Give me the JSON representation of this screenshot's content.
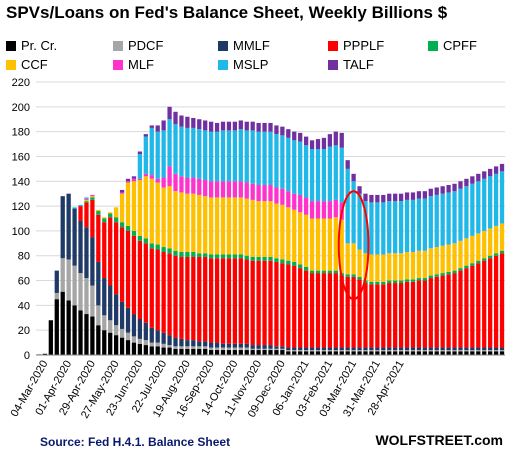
{
  "title": "SPVs/Loans  on Fed's Balance Sheet, Weekly Billions $",
  "source": "Source: Fed H.4.1. Balance Sheet",
  "brand": "WOLFSTREET.com",
  "legend": [
    {
      "label": "Pr. Cr.",
      "color": "#000000"
    },
    {
      "label": "PDCF",
      "color": "#a6a6a6"
    },
    {
      "label": "MMLF",
      "color": "#1f3a66"
    },
    {
      "label": "PPPLF",
      "color": "#ff0000"
    },
    {
      "label": "CPFF",
      "color": "#00b050"
    },
    {
      "label": "CCF",
      "color": "#ffc000"
    },
    {
      "label": "MLF",
      "color": "#ff33cc"
    },
    {
      "label": "MSLP",
      "color": "#20b8e8"
    },
    {
      "label": "TALF",
      "color": "#7030a0"
    }
  ],
  "chart_data": {
    "type": "bar",
    "stacked": true,
    "title": "SPVs/Loans  on Fed's Balance Sheet, Weekly Billions $",
    "ylim": [
      0,
      220
    ],
    "yticks": [
      0,
      20,
      40,
      60,
      80,
      100,
      120,
      140,
      160,
      180,
      200,
      220
    ],
    "grid": "horizontal",
    "legend_position": "top",
    "x_tick_labels": [
      "04-Mar-2020",
      "01-Apr-2020",
      "29-Apr-2020",
      "27-May-2020",
      "23-Jun-2020",
      "22-Jul-2020",
      "19-Aug-2020",
      "16-Sep-2020",
      "14-Oct-2020",
      "11-Nov-2020",
      "09-Dec-2020",
      "06-Jan-2021",
      "03-Feb-2021",
      "03-Mar-2021",
      "31-Mar-2021",
      "28-Apr-2021"
    ],
    "series_names": [
      "Pr. Cr.",
      "PDCF",
      "MMLF",
      "PPPLF",
      "CPFF",
      "CCF",
      "MLF",
      "MSLP",
      "TALF"
    ],
    "series_colors": [
      "#000000",
      "#a6a6a6",
      "#1f3a66",
      "#ff0000",
      "#00b050",
      "#ffc000",
      "#ff33cc",
      "#20b8e8",
      "#7030a0"
    ],
    "weeks": [
      [
        0.5,
        0,
        0,
        0,
        0,
        0,
        0,
        0,
        0
      ],
      [
        1,
        0,
        0,
        0,
        0,
        0,
        0,
        0,
        0
      ],
      [
        28,
        0,
        0,
        0,
        0,
        0,
        0,
        0,
        0
      ],
      [
        45,
        5,
        18,
        0,
        0,
        0,
        0,
        0,
        0
      ],
      [
        51,
        27,
        50,
        0,
        0,
        0,
        0,
        0,
        0
      ],
      [
        44,
        33,
        53,
        0,
        0,
        0,
        0,
        0,
        0
      ],
      [
        40,
        32,
        46,
        0,
        0,
        0,
        0,
        1,
        0
      ],
      [
        36,
        30,
        42,
        12,
        0,
        0,
        0,
        1,
        0
      ],
      [
        33,
        29,
        41,
        20,
        1,
        1,
        1,
        1,
        0
      ],
      [
        31,
        25,
        39,
        30,
        2,
        1,
        1,
        0,
        0
      ],
      [
        24,
        16,
        35,
        38,
        3,
        1,
        0,
        0,
        0
      ],
      [
        20,
        12,
        30,
        45,
        3,
        1,
        0,
        0,
        0
      ],
      [
        18,
        10,
        28,
        55,
        3,
        1,
        0,
        0,
        0
      ],
      [
        16,
        8,
        25,
        58,
        4,
        8,
        0,
        0,
        0
      ],
      [
        14,
        7,
        22,
        60,
        4,
        23,
        1,
        0,
        2
      ],
      [
        12,
        6,
        20,
        62,
        4,
        35,
        1,
        0,
        2
      ],
      [
        10,
        5,
        18,
        63,
        4,
        40,
        2,
        0,
        2
      ],
      [
        9,
        4,
        16,
        63,
        4,
        45,
        1,
        20,
        2
      ],
      [
        8,
        4,
        14,
        64,
        4,
        50,
        2,
        30,
        2
      ],
      [
        7,
        3,
        12,
        64,
        4,
        52,
        3,
        38,
        2
      ],
      [
        7,
        3,
        10,
        65,
        4,
        50,
        3,
        38,
        5
      ],
      [
        6,
        3,
        9,
        65,
        4,
        48,
        8,
        38,
        8
      ],
      [
        6,
        2,
        8,
        66,
        4,
        50,
        16,
        38,
        10
      ],
      [
        5,
        2,
        7,
        66,
        4,
        48,
        14,
        40,
        10
      ],
      [
        5,
        2,
        6,
        66,
        4,
        48,
        13,
        40,
        9
      ],
      [
        5,
        2,
        5,
        67,
        4,
        47,
        13,
        40,
        9
      ],
      [
        5,
        2,
        5,
        67,
        4,
        47,
        13,
        40,
        8
      ],
      [
        5,
        2,
        4,
        68,
        3,
        47,
        13,
        40,
        8
      ],
      [
        5,
        2,
        4,
        68,
        3,
        46,
        13,
        40,
        8
      ],
      [
        4,
        2,
        4,
        68,
        3,
        46,
        13,
        40,
        8
      ],
      [
        4,
        2,
        4,
        68,
        3,
        46,
        13,
        40,
        7
      ],
      [
        4,
        2,
        3,
        69,
        3,
        46,
        13,
        41,
        7
      ],
      [
        4,
        2,
        3,
        69,
        3,
        46,
        13,
        41,
        7
      ],
      [
        4,
        2,
        3,
        69,
        3,
        46,
        13,
        41,
        7
      ],
      [
        4,
        2,
        3,
        69,
        3,
        46,
        13,
        42,
        7
      ],
      [
        4,
        2,
        3,
        68,
        3,
        46,
        13,
        42,
        7
      ],
      [
        4,
        1,
        3,
        68,
        3,
        46,
        13,
        43,
        7
      ],
      [
        4,
        1,
        3,
        68,
        3,
        45,
        13,
        43,
        7
      ],
      [
        4,
        1,
        3,
        68,
        3,
        45,
        13,
        43,
        7
      ],
      [
        4,
        1,
        3,
        68,
        3,
        45,
        13,
        43,
        7
      ],
      [
        4,
        1,
        2,
        68,
        3,
        44,
        13,
        43,
        7
      ],
      [
        4,
        1,
        2,
        67,
        3,
        44,
        13,
        43,
        7
      ],
      [
        3,
        1,
        2,
        67,
        3,
        43,
        13,
        43,
        7
      ],
      [
        3,
        1,
        2,
        66,
        3,
        42,
        13,
        43,
        7
      ],
      [
        3,
        1,
        2,
        64,
        3,
        42,
        14,
        43,
        7
      ],
      [
        3,
        1,
        2,
        62,
        3,
        42,
        14,
        42,
        7
      ],
      [
        3,
        1,
        2,
        60,
        2,
        42,
        14,
        42,
        7
      ],
      [
        3,
        1,
        2,
        60,
        2,
        42,
        14,
        42,
        8
      ],
      [
        3,
        1,
        2,
        60,
        2,
        42,
        14,
        42,
        9
      ],
      [
        3,
        1,
        2,
        60,
        2,
        42,
        14,
        44,
        10
      ],
      [
        3,
        1,
        2,
        60,
        2,
        43,
        14,
        44,
        11
      ],
      [
        3,
        1,
        2,
        58,
        2,
        43,
        14,
        44,
        12
      ],
      [
        3,
        1,
        2,
        57,
        2,
        25,
        0,
        60,
        7
      ],
      [
        3,
        1,
        2,
        57,
        2,
        25,
        0,
        50,
        6
      ],
      [
        3,
        1,
        2,
        55,
        2,
        22,
        0,
        45,
        6
      ],
      [
        3,
        1,
        2,
        52,
        2,
        22,
        0,
        42,
        6
      ],
      [
        3,
        1,
        2,
        51,
        2,
        22,
        0,
        42,
        6
      ],
      [
        3,
        1,
        2,
        51,
        2,
        22,
        0,
        42,
        6
      ],
      [
        3,
        1,
        2,
        51,
        2,
        22,
        0,
        42,
        6
      ],
      [
        3,
        1,
        2,
        52,
        2,
        22,
        0,
        42,
        6
      ],
      [
        3,
        1,
        2,
        52,
        2,
        22,
        0,
        42,
        6
      ],
      [
        3,
        1,
        2,
        52,
        2,
        22,
        0,
        42,
        6
      ],
      [
        3,
        1,
        2,
        53,
        2,
        22,
        0,
        42,
        6
      ],
      [
        3,
        1,
        2,
        53,
        2,
        22,
        0,
        42,
        6
      ],
      [
        3,
        1,
        2,
        54,
        2,
        22,
        0,
        42,
        6
      ],
      [
        3,
        1,
        2,
        54,
        2,
        22,
        0,
        42,
        6
      ],
      [
        3,
        1,
        2,
        56,
        2,
        22,
        0,
        42,
        6
      ],
      [
        3,
        1,
        2,
        57,
        2,
        22,
        0,
        42,
        6
      ],
      [
        3,
        1,
        2,
        58,
        2,
        22,
        0,
        42,
        6
      ],
      [
        3,
        1,
        2,
        59,
        2,
        22,
        0,
        42,
        6
      ],
      [
        3,
        1,
        2,
        60,
        2,
        22,
        0,
        42,
        6
      ],
      [
        3,
        1,
        2,
        62,
        2,
        22,
        0,
        42,
        6
      ],
      [
        3,
        1,
        2,
        64,
        2,
        22,
        0,
        42,
        6
      ],
      [
        3,
        1,
        2,
        66,
        2,
        22,
        0,
        42,
        6
      ],
      [
        3,
        1,
        2,
        68,
        2,
        22,
        0,
        42,
        6
      ],
      [
        3,
        1,
        2,
        70,
        2,
        22,
        0,
        42,
        6
      ],
      [
        3,
        1,
        2,
        72,
        2,
        22,
        0,
        42,
        6
      ],
      [
        3,
        1,
        2,
        74,
        2,
        22,
        0,
        42,
        6
      ],
      [
        3,
        1,
        2,
        76,
        2,
        22,
        0,
        42,
        6
      ]
    ],
    "annotation": {
      "type": "ellipse",
      "color": "#ff0000",
      "x_week_from": 51,
      "x_week_to": 55,
      "y_from": 45,
      "y_to": 132
    }
  }
}
